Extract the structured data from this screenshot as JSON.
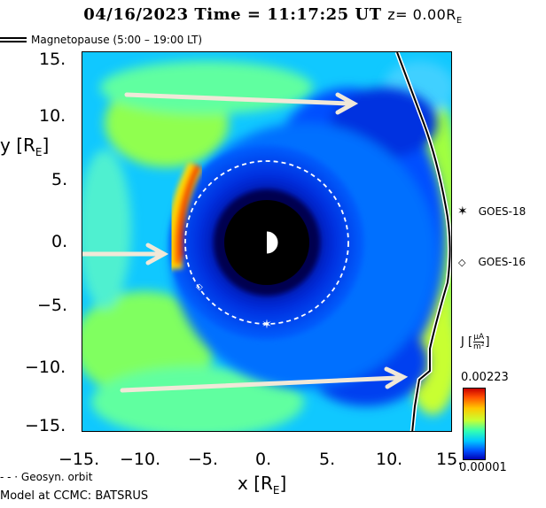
{
  "header": {
    "title_main": "04/16/2023 Time = 11:17:25 UT",
    "title_z": "z= 0.00R",
    "title_z_sub": "E"
  },
  "legend": {
    "magnetopause_label": "Magnetopause (5:00 – 19:00 LT)",
    "geosync_label": "- - · Geosyn. orbit"
  },
  "axes": {
    "y_label": "y [R",
    "y_label_sub": "E",
    "y_label_end": "]",
    "x_label": "x [R",
    "x_label_sub": "E",
    "x_label_end": "]",
    "y_ticks": [
      "15.",
      "10.",
      "5.",
      "0.",
      "−5.",
      "−10.",
      "−15."
    ],
    "x_ticks": [
      "−15.",
      "−10.",
      "−5.",
      "0.",
      "5.",
      "10.",
      "15."
    ]
  },
  "satellites": {
    "goes18": "GOES-18",
    "goes16": "GOES-16"
  },
  "colorbar": {
    "label": "J [",
    "unit_num": "μA",
    "unit_den": "m²",
    "label_end": "]",
    "max": "0.00223",
    "min": "0.00001"
  },
  "footer": {
    "model": "Model at CCMC: BATSRUS"
  },
  "colors": {
    "background_field": "#00c8ff",
    "earth": "#000000",
    "arrow": "#f0e8d8",
    "current_sheet": "#ff2000"
  }
}
